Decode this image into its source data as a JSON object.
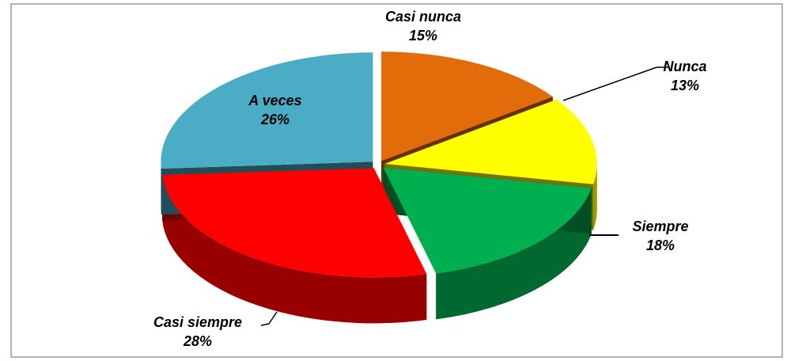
{
  "chart_data": {
    "type": "pie",
    "categories": [
      "Casi nunca",
      "Nunca",
      "Siempre",
      "Casi siempre",
      "A veces"
    ],
    "values": [
      15,
      13,
      18,
      28,
      26
    ],
    "value_labels": [
      "15%",
      "13%",
      "18%",
      "28%",
      "26%"
    ],
    "colors": [
      "#e36c0a",
      "#ffff00",
      "#00b050",
      "#ff0000",
      "#4bacc6"
    ]
  }
}
